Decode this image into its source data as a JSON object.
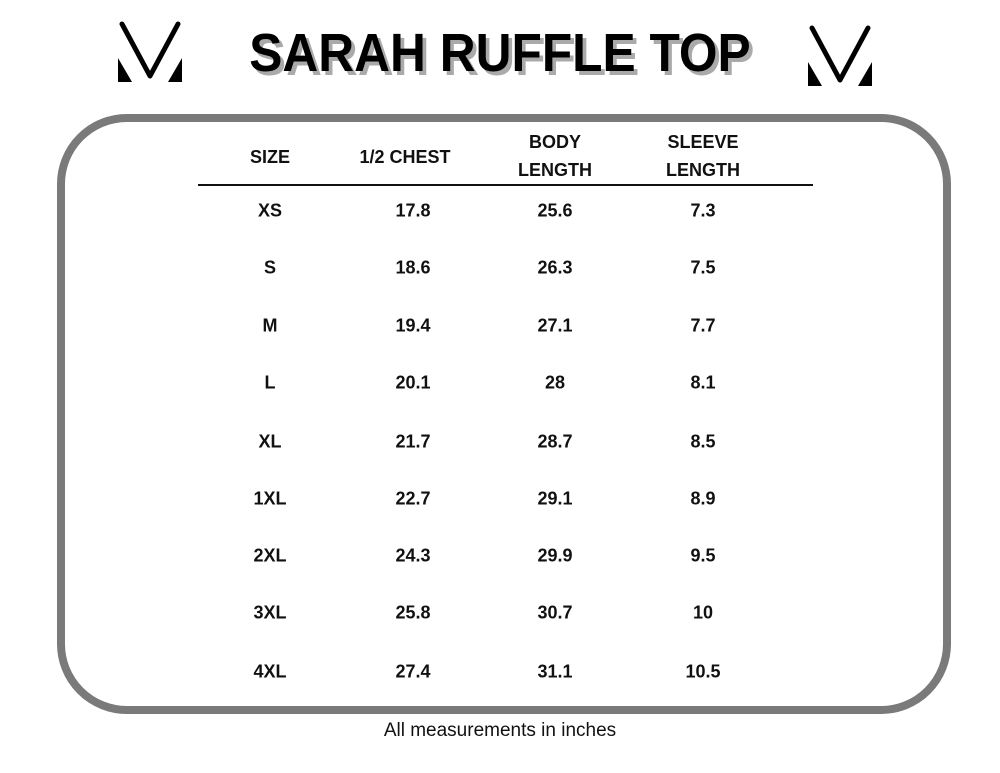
{
  "title": "SARAH RUFFLE TOP",
  "logo": "V-monogram",
  "colors": {
    "frame": "#7a7a7a",
    "title_shadow": "#aaaaaa",
    "text": "#111111"
  },
  "table": {
    "headers": [
      {
        "line1": "SIZE",
        "line2": ""
      },
      {
        "line1": "1/2 CHEST",
        "line2": ""
      },
      {
        "line1": "BODY",
        "line2": "LENGTH"
      },
      {
        "line1": "SLEEVE",
        "line2": "LENGTH"
      }
    ],
    "rows": [
      [
        "XS",
        "17.8",
        "25.6",
        "7.3"
      ],
      [
        "S",
        "18.6",
        "26.3",
        "7.5"
      ],
      [
        "M",
        "19.4",
        "27.1",
        "7.7"
      ],
      [
        "L",
        "20.1",
        "28",
        "8.1"
      ],
      [
        "XL",
        "21.7",
        "28.7",
        "8.5"
      ],
      [
        "1XL",
        "22.7",
        "29.1",
        "8.9"
      ],
      [
        "2XL",
        "24.3",
        "29.9",
        "9.5"
      ],
      [
        "3XL",
        "25.8",
        "30.7",
        "10"
      ],
      [
        "4XL",
        "27.4",
        "31.1",
        "10.5"
      ]
    ]
  },
  "footer": "All measurements in inches"
}
